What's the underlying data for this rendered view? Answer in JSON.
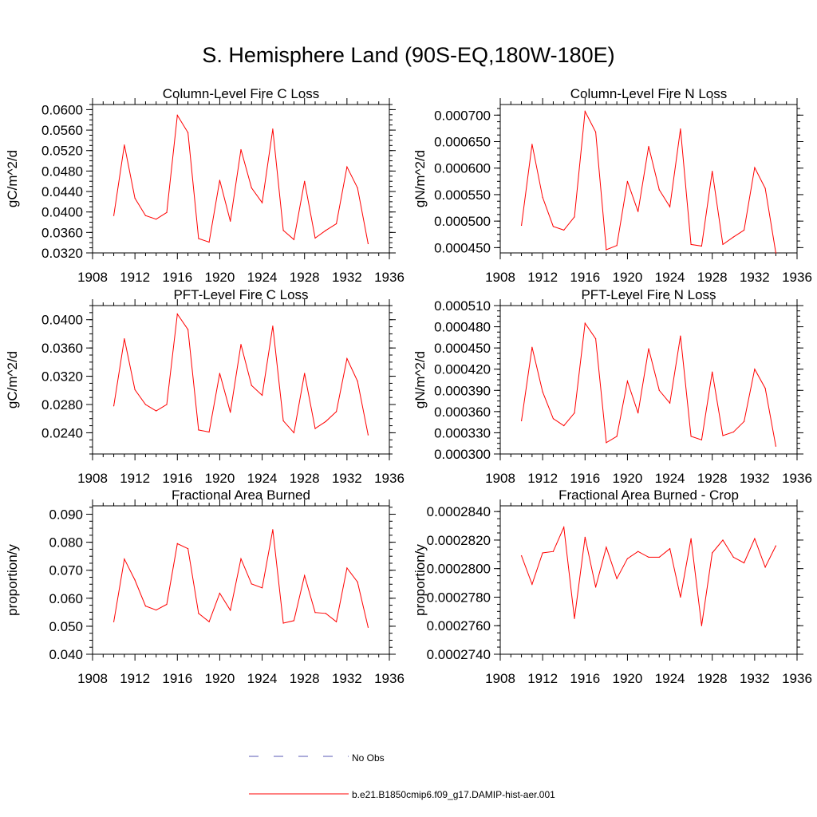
{
  "page": {
    "title": "S. Hemisphere Land (90S-EQ,180W-180E)"
  },
  "legend": {
    "entries": [
      {
        "label": "No Obs",
        "color": "#5a5ab4",
        "style": "dashed"
      },
      {
        "label": "b.e21.B1850cmip6.f09_g17.DAMIP-hist-aer.001",
        "color": "#ff0000",
        "style": "solid"
      }
    ]
  },
  "colors": {
    "series": "#ff0000",
    "axis": "#000000",
    "background": "#ffffff"
  },
  "chart_data": [
    {
      "type": "line",
      "title": "Column-Level Fire C Loss",
      "ylabel": "gC/m^2/d",
      "xlabel": "",
      "xlim": [
        1908,
        1936
      ],
      "ylim": [
        0.032,
        0.061
      ],
      "xticks": [
        "1908",
        "1912",
        "1916",
        "1920",
        "1924",
        "1928",
        "1932",
        "1936"
      ],
      "yticks": [
        "0.0320",
        "0.0360",
        "0.0400",
        "0.0440",
        "0.0480",
        "0.0520",
        "0.0560",
        "0.0600"
      ],
      "grid": false,
      "x": [
        1910,
        1911,
        1912,
        1913,
        1914,
        1915,
        1916,
        1917,
        1918,
        1919,
        1920,
        1921,
        1922,
        1923,
        1924,
        1925,
        1926,
        1927,
        1928,
        1929,
        1930,
        1931,
        1932,
        1933,
        1934
      ],
      "series": [
        {
          "name": "b.e21.B1850cmip6.f09_g17.DAMIP-hist-aer.001",
          "values": [
            0.0393,
            0.0531,
            0.0427,
            0.0393,
            0.0386,
            0.0399,
            0.0589,
            0.0555,
            0.0348,
            0.0341,
            0.0462,
            0.0382,
            0.0522,
            0.0447,
            0.0418,
            0.0562,
            0.0364,
            0.0346,
            0.046,
            0.0349,
            0.0364,
            0.0377,
            0.0488,
            0.0447,
            0.0338
          ]
        }
      ]
    },
    {
      "type": "line",
      "title": "Column-Level Fire N Loss",
      "ylabel": "gN/m^2/d",
      "xlabel": "",
      "xlim": [
        1908,
        1936
      ],
      "ylim": [
        0.00044,
        0.00072
      ],
      "xticks": [
        "1908",
        "1912",
        "1916",
        "1920",
        "1924",
        "1928",
        "1932",
        "1936"
      ],
      "yticks": [
        "0.000450",
        "0.000500",
        "0.000550",
        "0.000600",
        "0.000650",
        "0.000700"
      ],
      "grid": false,
      "x": [
        1910,
        1911,
        1912,
        1913,
        1914,
        1915,
        1916,
        1917,
        1918,
        1919,
        1920,
        1921,
        1922,
        1923,
        1924,
        1925,
        1926,
        1927,
        1928,
        1929,
        1930,
        1931,
        1932,
        1933,
        1934
      ],
      "series": [
        {
          "name": "b.e21.B1850cmip6.f09_g17.DAMIP-hist-aer.001",
          "values": [
            0.000492,
            0.000645,
            0.000545,
            0.00049,
            0.000483,
            0.000508,
            0.000707,
            0.000668,
            0.000446,
            0.000454,
            0.000575,
            0.000518,
            0.000641,
            0.000559,
            0.000527,
            0.000674,
            0.000456,
            0.000453,
            0.000594,
            0.000456,
            0.00047,
            0.000483,
            0.000601,
            0.000562,
            0.00044
          ]
        }
      ]
    },
    {
      "type": "line",
      "title": "PFT-Level Fire C Loss",
      "ylabel": "gC/m^2/d",
      "xlabel": "",
      "xlim": [
        1908,
        1936
      ],
      "ylim": [
        0.021,
        0.042
      ],
      "xticks": [
        "1908",
        "1912",
        "1916",
        "1920",
        "1924",
        "1928",
        "1932",
        "1936"
      ],
      "yticks": [
        "0.0240",
        "0.0280",
        "0.0320",
        "0.0360",
        "0.0400"
      ],
      "grid": false,
      "x": [
        1910,
        1911,
        1912,
        1913,
        1914,
        1915,
        1916,
        1917,
        1918,
        1919,
        1920,
        1921,
        1922,
        1923,
        1924,
        1925,
        1926,
        1927,
        1928,
        1929,
        1930,
        1931,
        1932,
        1933,
        1934
      ],
      "series": [
        {
          "name": "b.e21.B1850cmip6.f09_g17.DAMIP-hist-aer.001",
          "values": [
            0.0278,
            0.0373,
            0.0301,
            0.028,
            0.0271,
            0.028,
            0.0408,
            0.0386,
            0.0244,
            0.0241,
            0.0324,
            0.0269,
            0.0365,
            0.0307,
            0.0293,
            0.0391,
            0.0257,
            0.024,
            0.0324,
            0.0246,
            0.0256,
            0.027,
            0.0345,
            0.0313,
            0.0237
          ]
        }
      ]
    },
    {
      "type": "line",
      "title": "PFT-Level Fire N Loss",
      "ylabel": "gN/m^2/d",
      "xlabel": "",
      "xlim": [
        1908,
        1936
      ],
      "ylim": [
        0.0003,
        0.00051
      ],
      "xticks": [
        "1908",
        "1912",
        "1916",
        "1920",
        "1924",
        "1928",
        "1932",
        "1936"
      ],
      "yticks": [
        "0.000300",
        "0.000330",
        "0.000360",
        "0.000390",
        "0.000420",
        "0.000450",
        "0.000480",
        "0.000510"
      ],
      "grid": false,
      "x": [
        1910,
        1911,
        1912,
        1913,
        1914,
        1915,
        1916,
        1917,
        1918,
        1919,
        1920,
        1921,
        1922,
        1923,
        1924,
        1925,
        1926,
        1927,
        1928,
        1929,
        1930,
        1931,
        1932,
        1933,
        1934
      ],
      "series": [
        {
          "name": "b.e21.B1850cmip6.f09_g17.DAMIP-hist-aer.001",
          "values": [
            0.000347,
            0.000451,
            0.000388,
            0.00035,
            0.00034,
            0.000358,
            0.000485,
            0.000463,
            0.000316,
            0.000325,
            0.000403,
            0.000358,
            0.000449,
            0.00039,
            0.000372,
            0.000467,
            0.000325,
            0.00032,
            0.000416,
            0.000326,
            0.000331,
            0.000346,
            0.00042,
            0.000393,
            0.000311
          ]
        }
      ]
    },
    {
      "type": "line",
      "title": "Fractional Area Burned",
      "ylabel": "proportion/y",
      "xlabel": "",
      "xlim": [
        1908,
        1936
      ],
      "ylim": [
        0.04,
        0.093
      ],
      "xticks": [
        "1908",
        "1912",
        "1916",
        "1920",
        "1924",
        "1928",
        "1932",
        "1936"
      ],
      "yticks": [
        "0.040",
        "0.050",
        "0.060",
        "0.070",
        "0.080",
        "0.090"
      ],
      "grid": false,
      "x": [
        1910,
        1911,
        1912,
        1913,
        1914,
        1915,
        1916,
        1917,
        1918,
        1919,
        1920,
        1921,
        1922,
        1923,
        1924,
        1925,
        1926,
        1927,
        1928,
        1929,
        1930,
        1931,
        1932,
        1933,
        1934
      ],
      "series": [
        {
          "name": "b.e21.B1850cmip6.f09_g17.DAMIP-hist-aer.001",
          "values": [
            0.0516,
            0.074,
            0.0665,
            0.0572,
            0.0558,
            0.0578,
            0.0795,
            0.0777,
            0.0546,
            0.0516,
            0.0618,
            0.0557,
            0.0741,
            0.0651,
            0.0637,
            0.0845,
            0.0511,
            0.052,
            0.0681,
            0.0549,
            0.0546,
            0.0516,
            0.0708,
            0.0658,
            0.0496
          ]
        }
      ]
    },
    {
      "type": "line",
      "title": "Fractional Area Burned - Crop",
      "ylabel": "proportion/y",
      "xlabel": "",
      "xlim": [
        1908,
        1936
      ],
      "ylim": [
        0.000274,
        0.0002844
      ],
      "xticks": [
        "1908",
        "1912",
        "1916",
        "1920",
        "1924",
        "1928",
        "1932",
        "1936"
      ],
      "yticks": [
        "0.0002740",
        "0.0002760",
        "0.0002780",
        "0.0002800",
        "0.0002820",
        "0.0002840"
      ],
      "grid": false,
      "x": [
        1910,
        1911,
        1912,
        1913,
        1914,
        1915,
        1916,
        1917,
        1918,
        1919,
        1920,
        1921,
        1922,
        1923,
        1924,
        1925,
        1926,
        1927,
        1928,
        1929,
        1930,
        1931,
        1932,
        1933,
        1934
      ],
      "series": [
        {
          "name": "b.e21.B1850cmip6.f09_g17.DAMIP-hist-aer.001",
          "values": [
            0.0002809,
            0.0002789,
            0.0002811,
            0.0002812,
            0.0002829,
            0.0002765,
            0.0002822,
            0.0002787,
            0.0002815,
            0.0002793,
            0.0002807,
            0.0002812,
            0.0002808,
            0.0002808,
            0.0002814,
            0.000278,
            0.0002821,
            0.000276,
            0.0002811,
            0.000282,
            0.0002808,
            0.0002804,
            0.0002821,
            0.0002801,
            0.0002816
          ]
        }
      ]
    }
  ]
}
